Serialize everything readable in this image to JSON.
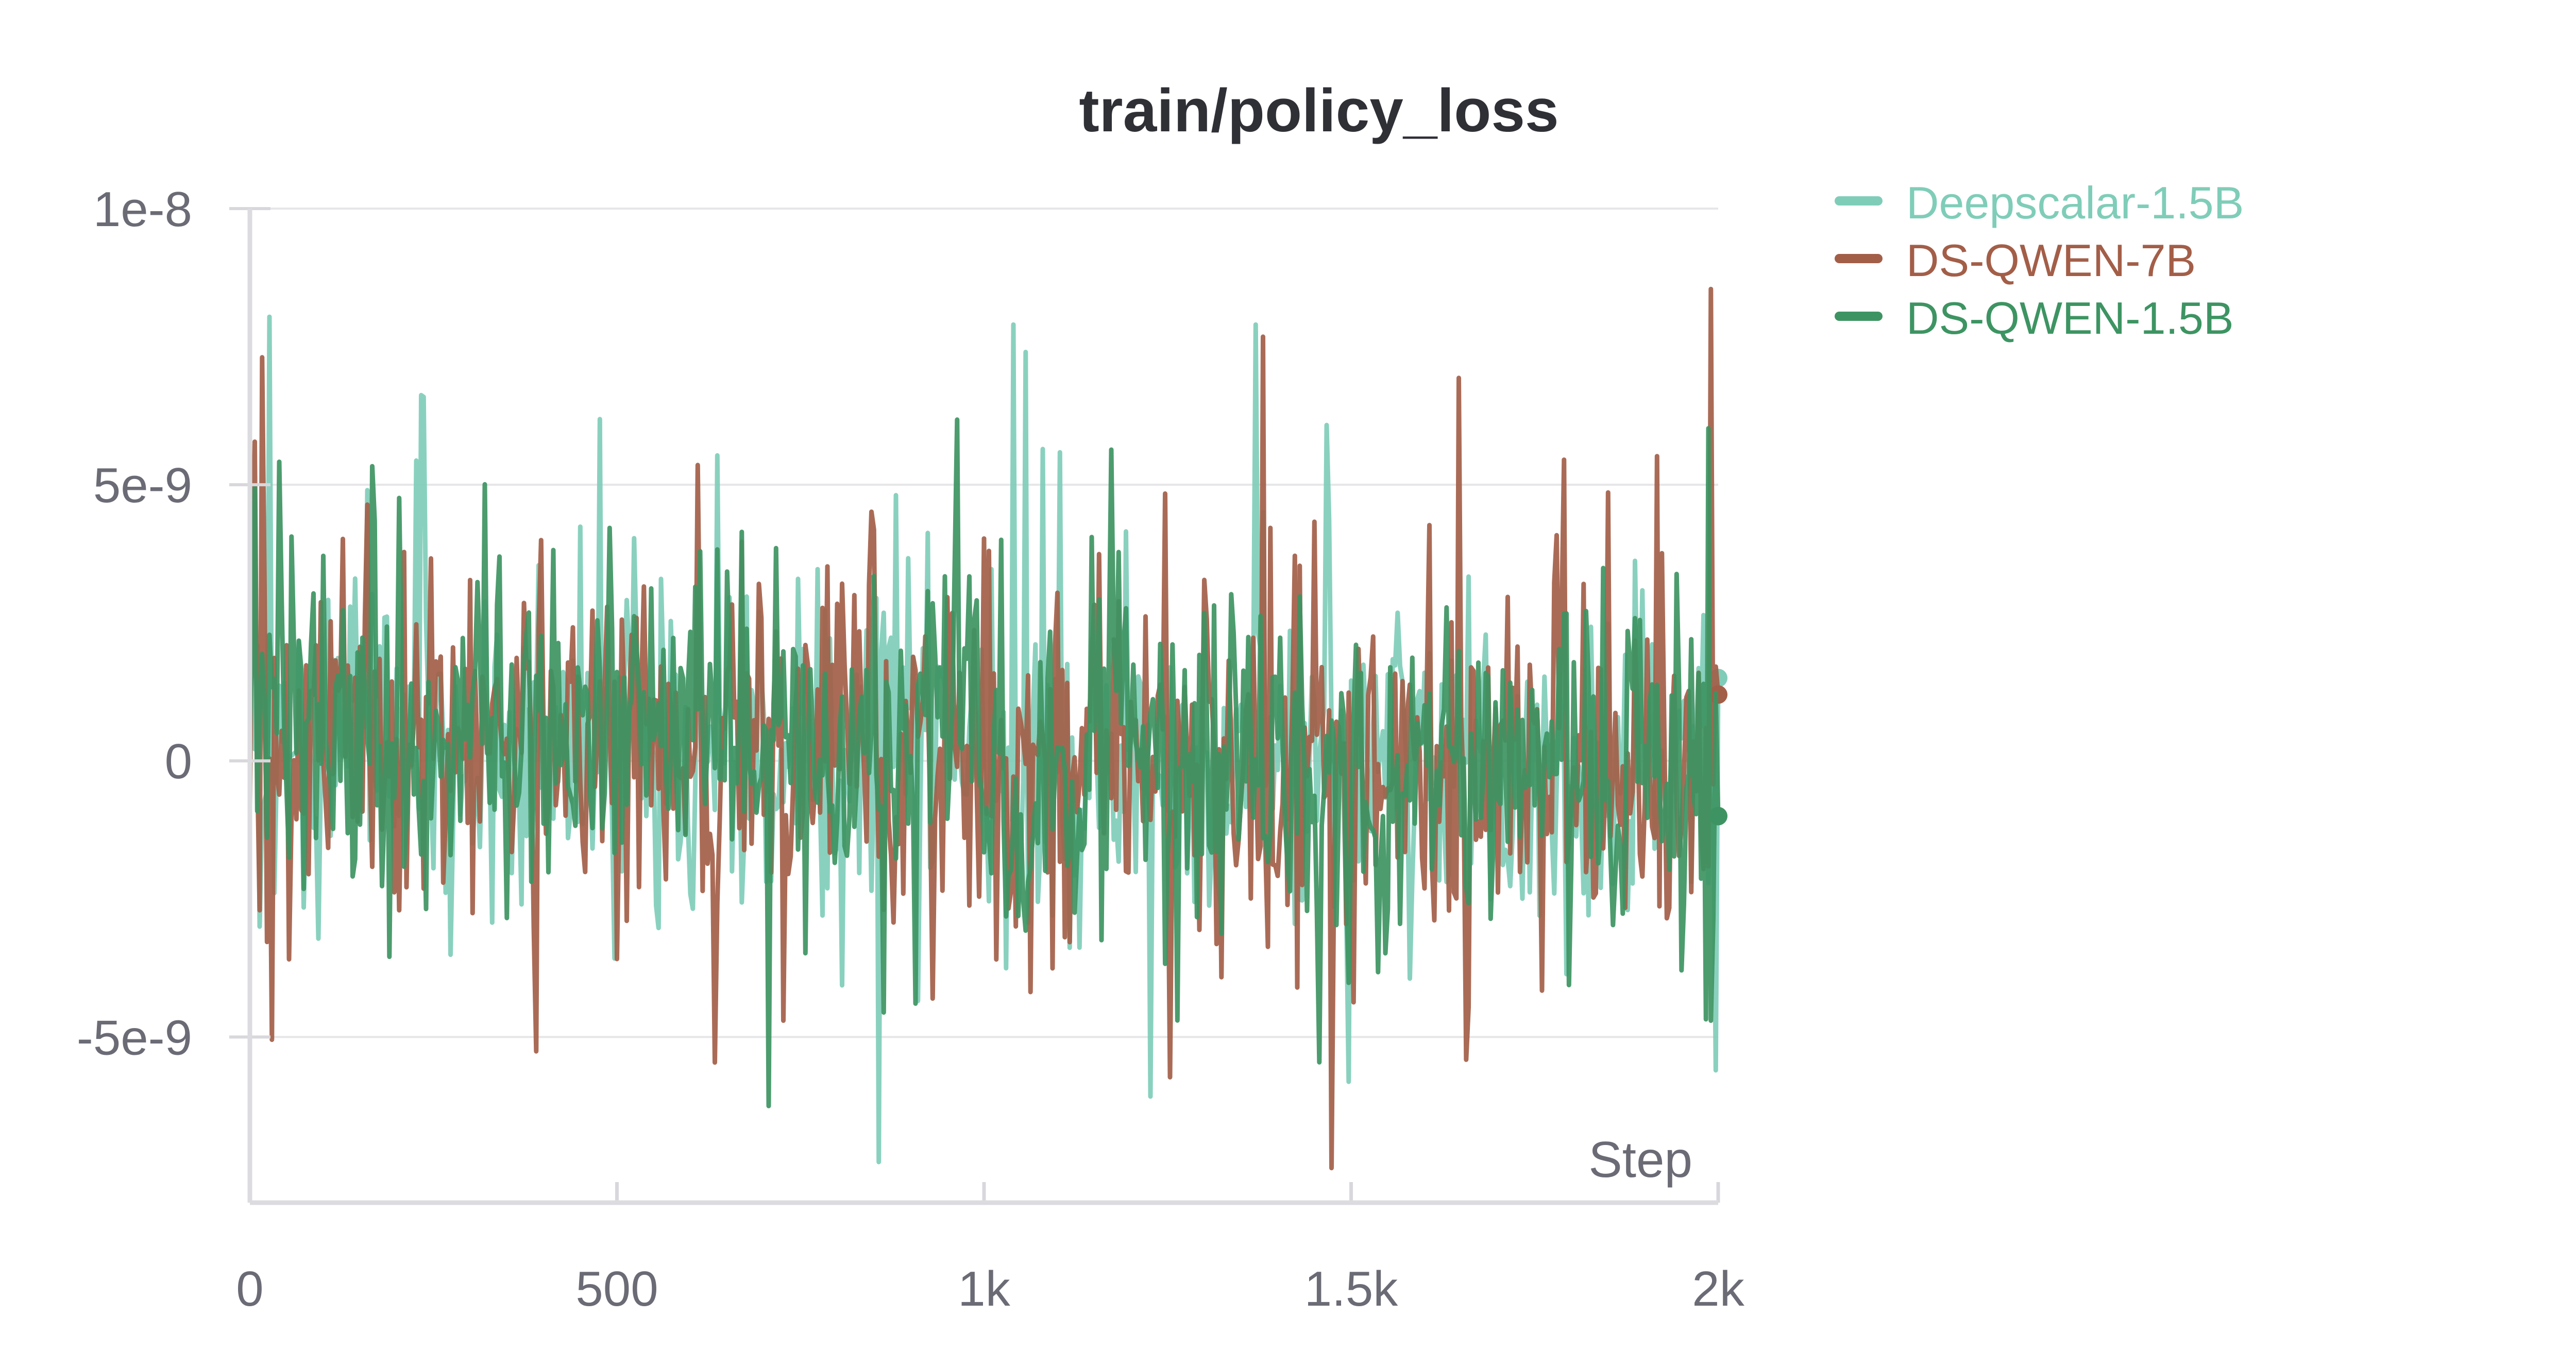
{
  "chart_data": {
    "type": "line",
    "title": "train/policy_loss",
    "xlabel": "Step",
    "ylabel": "",
    "xlim": [
      0,
      2000
    ],
    "ylim": [
      -8e-09,
      1e-08
    ],
    "x_ticks": [
      {
        "value": 0,
        "label": "0"
      },
      {
        "value": 500,
        "label": "500"
      },
      {
        "value": 1000,
        "label": "1k"
      },
      {
        "value": 1500,
        "label": "1.5k"
      },
      {
        "value": 2000,
        "label": "2k"
      }
    ],
    "y_ticks": [
      {
        "value": 1e-08,
        "label": "1e-8"
      },
      {
        "value": 5e-09,
        "label": "5e-9"
      },
      {
        "value": 0,
        "label": "0"
      },
      {
        "value": -5e-09,
        "label": "-5e-9"
      }
    ],
    "grid": true,
    "legend_position": "top-right",
    "series": [
      {
        "name": "Deepscalar-1.5B",
        "color": "#7fcdb8",
        "end_value": 1.5e-09,
        "x_end": 2000,
        "seed": 11,
        "amp": 2.6e-09,
        "spike": 7.9e-09,
        "dip": -7.2e-09
      },
      {
        "name": "DS-QWEN-7B",
        "color": "#a35e48",
        "end_value": 1.2e-09,
        "x_end": 2000,
        "seed": 23,
        "amp": 2.8e-09,
        "spike": 1e-08,
        "dip": -6.7e-09
      },
      {
        "name": "DS-QWEN-1.5B",
        "color": "#3d9462",
        "end_value": -1e-09,
        "x_end": 2000,
        "seed": 37,
        "amp": 2.6e-09,
        "spike": 9.3e-09,
        "dip": -7.9e-09
      }
    ]
  }
}
